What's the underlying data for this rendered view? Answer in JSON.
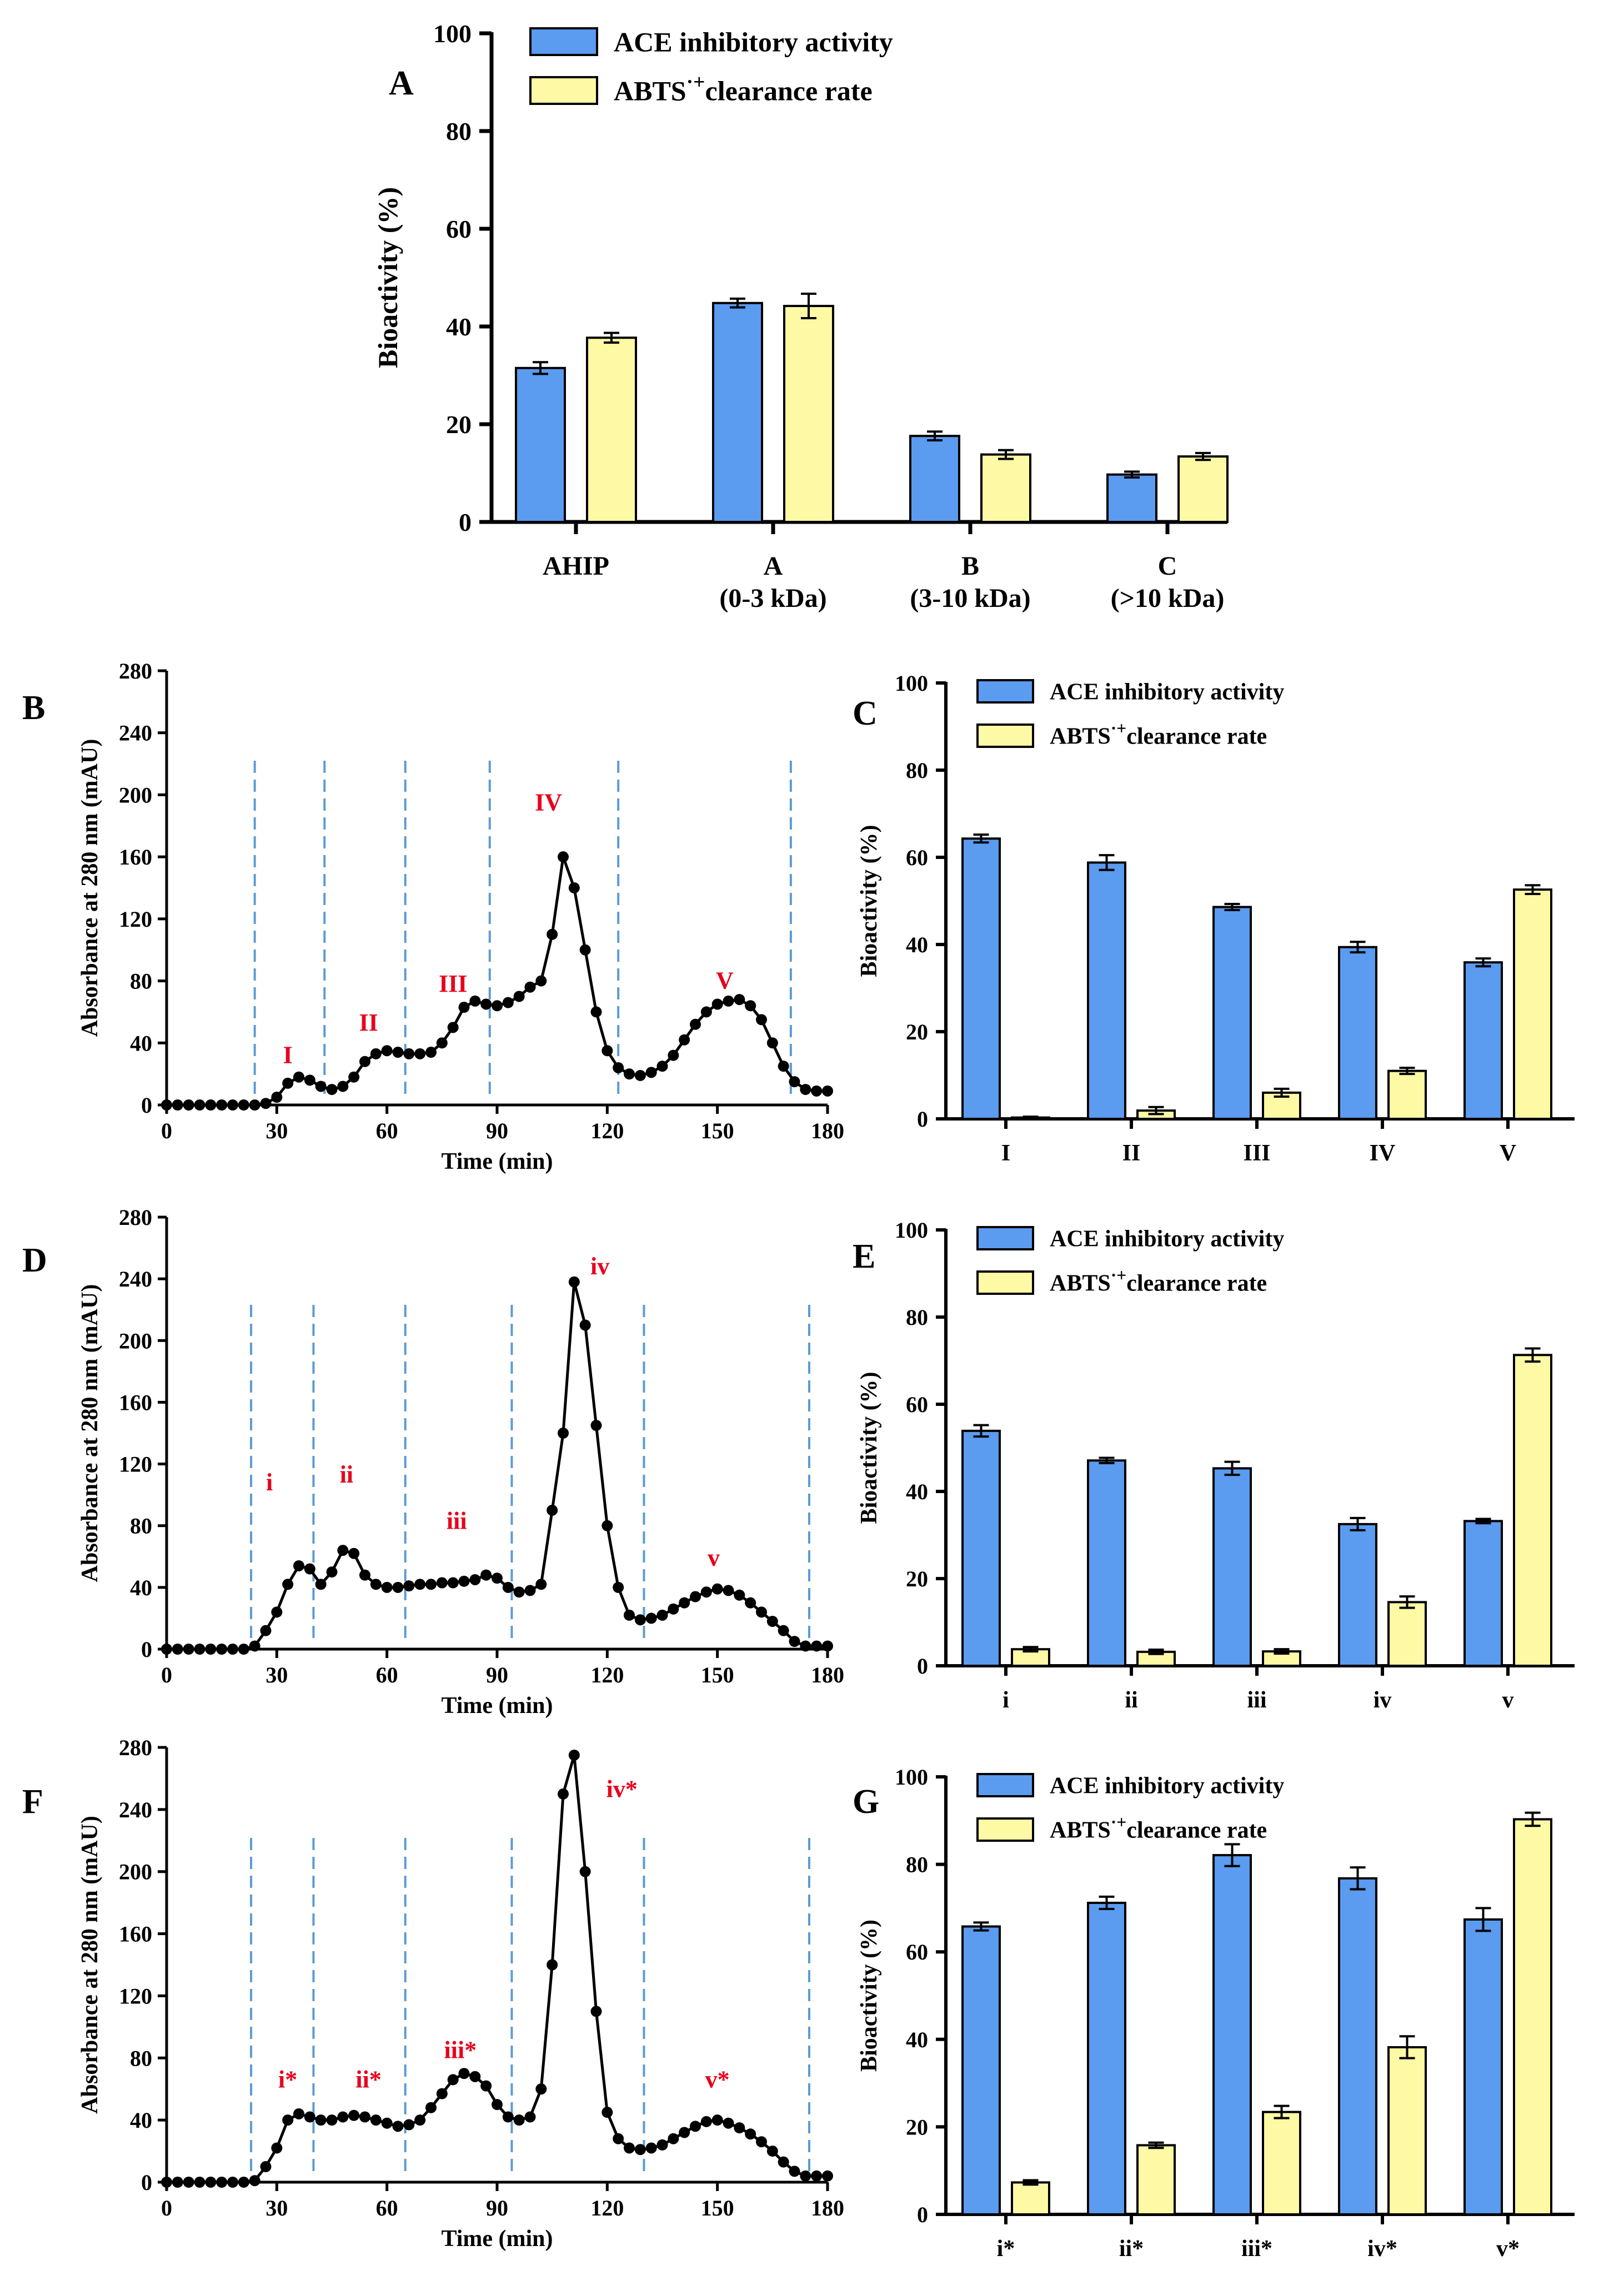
{
  "colors": {
    "ace": "#5b9bf0",
    "abts": "#fdf9a4",
    "axis": "#000000",
    "line": "#000000",
    "divider": "#5b9bd5",
    "peak_label": "#e8001b"
  },
  "legend": {
    "ace": "ACE inhibitory activity",
    "abts_prefix": "ABTS",
    "abts_sup": "·+",
    "abts_suffix": "clearance rate"
  },
  "panels": {
    "A": {
      "letter": "A",
      "ylabel": "Bioactivity (%)",
      "ylim": [
        0,
        100
      ],
      "yticks": [
        "0",
        "20",
        "40",
        "60",
        "80",
        "100"
      ]
    },
    "B": {
      "letter": "B",
      "xlabel": "Time (min)",
      "ylabel": "Absorbance at 280 nm (mAU)",
      "xticks": [
        "0",
        "30",
        "60",
        "90",
        "120",
        "150",
        "180"
      ],
      "yticks": [
        "0",
        "40",
        "80",
        "120",
        "160",
        "200",
        "240",
        "280"
      ]
    },
    "C": {
      "letter": "C",
      "ylabel": "Bioactivity (%)",
      "yticks": [
        "0",
        "20",
        "40",
        "60",
        "80",
        "100"
      ]
    },
    "D": {
      "letter": "D",
      "xlabel": "Time (min)",
      "ylabel": "Absorbance at 280 nm (mAU)",
      "xticks": [
        "0",
        "30",
        "60",
        "90",
        "120",
        "150",
        "180"
      ],
      "yticks": [
        "0",
        "40",
        "80",
        "120",
        "160",
        "200",
        "240",
        "280"
      ]
    },
    "E": {
      "letter": "E",
      "ylabel": "Bioactivity (%)",
      "yticks": [
        "0",
        "20",
        "40",
        "60",
        "80",
        "100"
      ]
    },
    "F": {
      "letter": "F",
      "xlabel": "Time (min)",
      "ylabel": "Absorbance at 280 nm (mAU)",
      "xticks": [
        "0",
        "30",
        "60",
        "90",
        "120",
        "150",
        "180"
      ],
      "yticks": [
        "0",
        "40",
        "80",
        "120",
        "160",
        "200",
        "240",
        "280"
      ]
    },
    "G": {
      "letter": "G",
      "ylabel": "Bioactivity (%)",
      "yticks": [
        "0",
        "20",
        "40",
        "60",
        "80",
        "100"
      ]
    }
  },
  "chart_data": [
    {
      "id": "A",
      "type": "bar",
      "ylabel": "Bioactivity (%)",
      "ylim": [
        0,
        100
      ],
      "categories": [
        [
          "AHIP"
        ],
        [
          "A",
          "(0-3 kDa)"
        ],
        [
          "B",
          "(3-10 kDa)"
        ],
        [
          "C",
          "(>10 kDa)"
        ]
      ],
      "series": [
        {
          "name": "ACE inhibitory activity",
          "values": [
            31.5,
            44.8,
            17.6,
            9.7
          ],
          "errors": [
            1.2,
            0.9,
            0.9,
            0.6
          ]
        },
        {
          "name": "ABTS·+clearance rate",
          "values": [
            37.7,
            44.2,
            13.8,
            13.4
          ],
          "errors": [
            1.0,
            2.5,
            0.9,
            0.7
          ]
        }
      ]
    },
    {
      "id": "B",
      "type": "line",
      "xlabel": "Time (min)",
      "ylabel": "Absorbance at 280 nm (mAU)",
      "xlim": [
        0,
        180
      ],
      "ylim": [
        0,
        280
      ],
      "x": [
        0,
        3,
        6,
        9,
        12,
        15,
        18,
        21,
        24,
        27,
        30,
        33,
        36,
        39,
        42,
        45,
        48,
        51,
        54,
        57,
        60,
        63,
        66,
        69,
        72,
        75,
        78,
        81,
        84,
        87,
        90,
        93,
        96,
        99,
        102,
        105,
        108,
        111,
        114,
        117,
        120,
        123,
        126,
        129,
        132,
        135,
        138,
        141,
        144,
        147,
        150,
        153,
        156,
        159,
        162,
        165,
        168,
        171,
        174,
        177,
        180
      ],
      "y": [
        0,
        0,
        0,
        0,
        0,
        0,
        0,
        0,
        0,
        1,
        5,
        14,
        18,
        16,
        12,
        10,
        12,
        18,
        28,
        33,
        35,
        34,
        33,
        33,
        34,
        40,
        50,
        63,
        67,
        65,
        64,
        66,
        70,
        76,
        80,
        110,
        160,
        140,
        100,
        60,
        35,
        24,
        20,
        19,
        21,
        25,
        32,
        42,
        52,
        60,
        65,
        67,
        68,
        64,
        55,
        40,
        25,
        15,
        10,
        9,
        9
      ],
      "dividers": [
        24,
        43,
        65,
        88,
        123,
        170
      ],
      "peaks": [
        {
          "label": "I",
          "x": 33,
          "y": 27
        },
        {
          "label": "II",
          "x": 55,
          "y": 48
        },
        {
          "label": "III",
          "x": 78,
          "y": 73
        },
        {
          "label": "IV",
          "x": 104,
          "y": 190
        },
        {
          "label": "V",
          "x": 152,
          "y": 75
        }
      ]
    },
    {
      "id": "C",
      "type": "bar",
      "ylabel": "Bioactivity (%)",
      "ylim": [
        0,
        100
      ],
      "categories": [
        [
          "I"
        ],
        [
          "II"
        ],
        [
          "III"
        ],
        [
          "IV"
        ],
        [
          "V"
        ]
      ],
      "series": [
        {
          "name": "ACE inhibitory activity",
          "values": [
            64.3,
            58.8,
            48.6,
            39.4,
            35.9
          ],
          "errors": [
            0.9,
            1.7,
            0.7,
            1.2,
            0.9
          ]
        },
        {
          "name": "ABTS·+clearance rate",
          "values": [
            0.3,
            1.9,
            6.0,
            11.0,
            52.6
          ],
          "errors": [
            0.2,
            0.8,
            0.9,
            0.7,
            1.0
          ]
        }
      ]
    },
    {
      "id": "D",
      "type": "line",
      "xlabel": "Time (min)",
      "ylabel": "Absorbance at 280 nm (mAU)",
      "xlim": [
        0,
        180
      ],
      "ylim": [
        0,
        280
      ],
      "x": [
        0,
        3,
        6,
        9,
        12,
        15,
        18,
        21,
        24,
        27,
        30,
        33,
        36,
        39,
        42,
        45,
        48,
        51,
        54,
        57,
        60,
        63,
        66,
        69,
        72,
        75,
        78,
        81,
        84,
        87,
        90,
        93,
        96,
        99,
        102,
        105,
        108,
        111,
        114,
        117,
        120,
        123,
        126,
        129,
        132,
        135,
        138,
        141,
        144,
        147,
        150,
        153,
        156,
        159,
        162,
        165,
        168,
        171,
        174,
        177,
        180
      ],
      "y": [
        0,
        0,
        0,
        0,
        0,
        0,
        0,
        0,
        2,
        12,
        24,
        42,
        54,
        52,
        42,
        50,
        64,
        62,
        48,
        42,
        40,
        40,
        41,
        42,
        42,
        43,
        43,
        44,
        45,
        48,
        46,
        40,
        37,
        38,
        42,
        90,
        140,
        238,
        210,
        145,
        80,
        40,
        22,
        19,
        20,
        22,
        26,
        30,
        34,
        37,
        39,
        38,
        35,
        30,
        24,
        18,
        12,
        5,
        2,
        2,
        2
      ],
      "dividers": [
        23,
        40,
        65,
        94,
        130,
        175
      ],
      "peaks": [
        {
          "label": "i",
          "x": 28,
          "y": 103
        },
        {
          "label": "ii",
          "x": 49,
          "y": 108
        },
        {
          "label": "iii",
          "x": 79,
          "y": 78
        },
        {
          "label": "iv",
          "x": 118,
          "y": 243
        },
        {
          "label": "v",
          "x": 149,
          "y": 54
        }
      ]
    },
    {
      "id": "E",
      "type": "bar",
      "ylabel": "Bioactivity (%)",
      "ylim": [
        0,
        100
      ],
      "categories": [
        [
          "i"
        ],
        [
          "ii"
        ],
        [
          "iii"
        ],
        [
          "iv"
        ],
        [
          "v"
        ]
      ],
      "series": [
        {
          "name": "ACE inhibitory activity",
          "values": [
            53.9,
            47.1,
            45.3,
            32.5,
            33.2
          ],
          "errors": [
            1.3,
            0.6,
            1.5,
            1.4,
            0.5
          ]
        },
        {
          "name": "ABTS·+clearance rate",
          "values": [
            3.8,
            3.2,
            3.3,
            14.6,
            71.3
          ],
          "errors": [
            0.5,
            0.5,
            0.5,
            1.3,
            1.5
          ]
        }
      ]
    },
    {
      "id": "F",
      "type": "line",
      "xlabel": "Time (min)",
      "ylabel": "Absorbance at 280 nm (mAU)",
      "xlim": [
        0,
        180
      ],
      "ylim": [
        0,
        280
      ],
      "x": [
        0,
        3,
        6,
        9,
        12,
        15,
        18,
        21,
        24,
        27,
        30,
        33,
        36,
        39,
        42,
        45,
        48,
        51,
        54,
        57,
        60,
        63,
        66,
        69,
        72,
        75,
        78,
        81,
        84,
        87,
        90,
        93,
        96,
        99,
        102,
        105,
        108,
        111,
        114,
        117,
        120,
        123,
        126,
        129,
        132,
        135,
        138,
        141,
        144,
        147,
        150,
        153,
        156,
        159,
        162,
        165,
        168,
        171,
        174,
        177,
        180
      ],
      "y": [
        0,
        0,
        0,
        0,
        0,
        0,
        0,
        0,
        1,
        10,
        22,
        40,
        44,
        42,
        40,
        40,
        42,
        43,
        42,
        40,
        38,
        36,
        37,
        40,
        48,
        57,
        66,
        70,
        68,
        62,
        50,
        42,
        40,
        42,
        60,
        140,
        250,
        275,
        200,
        110,
        45,
        28,
        22,
        21,
        22,
        24,
        28,
        32,
        36,
        39,
        40,
        38,
        35,
        31,
        26,
        20,
        13,
        7,
        4,
        4,
        4
      ],
      "dividers": [
        23,
        40,
        65,
        94,
        130,
        175
      ],
      "peaks": [
        {
          "label": "i*",
          "x": 33,
          "y": 61
        },
        {
          "label": "ii*",
          "x": 55,
          "y": 61
        },
        {
          "label": "iii*",
          "x": 80,
          "y": 80
        },
        {
          "label": "iv*",
          "x": 124,
          "y": 248
        },
        {
          "label": "v*",
          "x": 150,
          "y": 61
        }
      ]
    },
    {
      "id": "G",
      "type": "bar",
      "ylabel": "Bioactivity (%)",
      "ylim": [
        0,
        100
      ],
      "categories": [
        [
          "i*"
        ],
        [
          "ii*"
        ],
        [
          "iii*"
        ],
        [
          "iv*"
        ],
        [
          "v*"
        ]
      ],
      "series": [
        {
          "name": "ACE inhibitory activity",
          "values": [
            65.8,
            71.2,
            82.1,
            76.8,
            67.4
          ],
          "errors": [
            0.9,
            1.4,
            2.5,
            2.5,
            2.6
          ]
        },
        {
          "name": "ABTS·+clearance rate",
          "values": [
            7.3,
            15.8,
            23.4,
            38.2,
            90.3
          ],
          "errors": [
            0.5,
            0.6,
            1.4,
            2.5,
            1.5
          ]
        }
      ]
    }
  ]
}
